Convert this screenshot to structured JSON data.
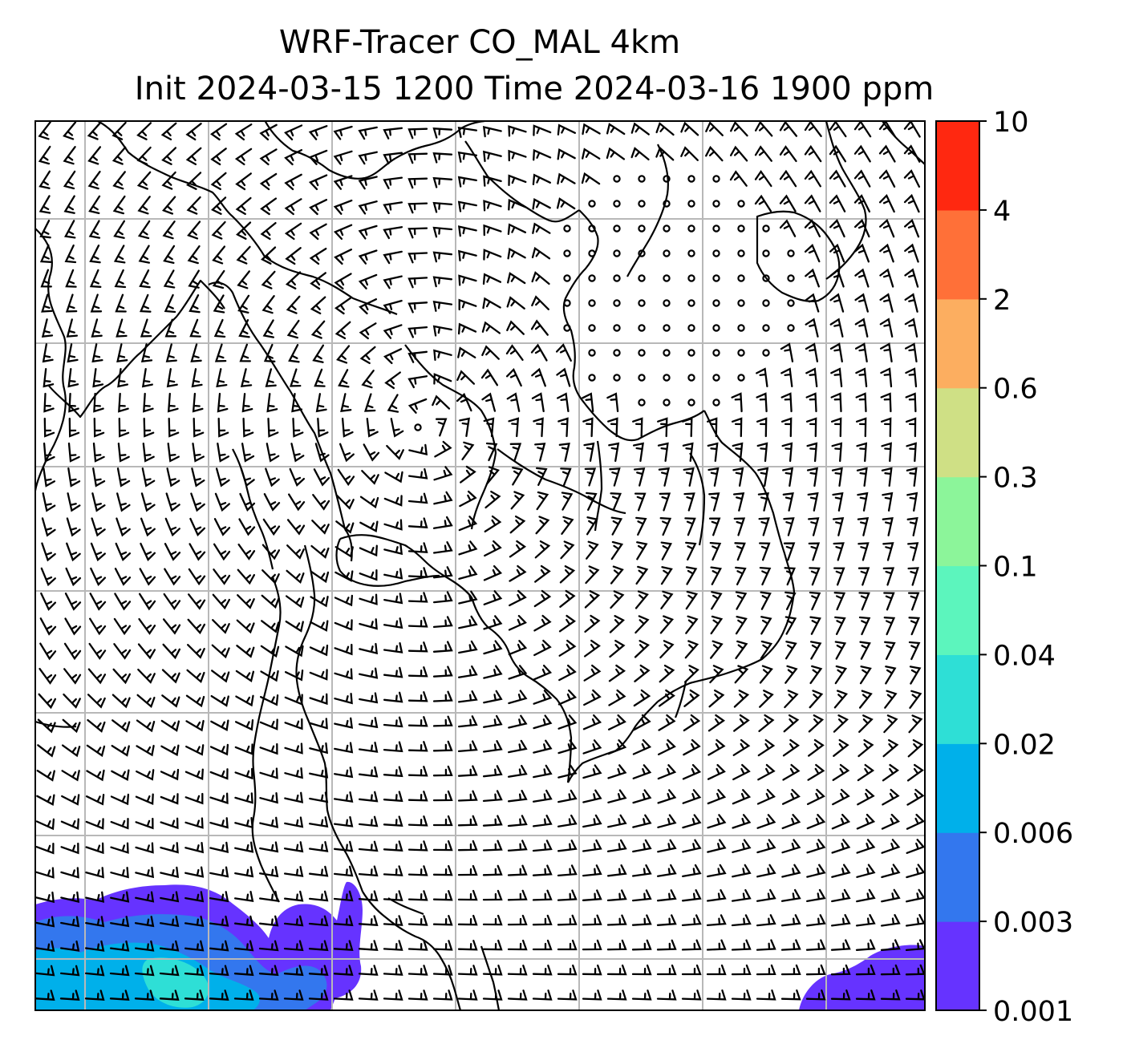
{
  "chart_data": {
    "type": "heatmap",
    "title": "WRF-Tracer CO_MAL 4km",
    "subtitle": "Init 2024-03-15 1200 Time 2024-03-16 1900 ppm",
    "variable": "CO_MAL",
    "units": "ppm",
    "init_time": "2024-03-15 1200",
    "valid_time": "2024-03-16 1900",
    "grid": true,
    "map_overlays": [
      "coastlines",
      "country-borders",
      "wind-barbs"
    ],
    "colorbar": {
      "placement": "right",
      "levels": [
        0.001,
        0.003,
        0.006,
        0.02,
        0.04,
        0.1,
        0.3,
        0.6,
        2,
        4,
        10
      ],
      "tick_labels": [
        "0.001",
        "0.003",
        "0.006",
        "0.02",
        "0.04",
        "0.1",
        "0.3",
        "0.6",
        "2",
        "4",
        "10"
      ],
      "colors": [
        "#6633ff",
        "#3377ee",
        "#00b0ea",
        "#2edfd6",
        "#5cf5bd",
        "#8cf59a",
        "#cfe085",
        "#fcae60",
        "#ff7038",
        "#ff2810"
      ]
    },
    "concentration_regions": [
      {
        "location": "bottom-left",
        "max_level": "0.02"
      },
      {
        "location": "bottom-right",
        "max_level": "0.003"
      }
    ]
  }
}
